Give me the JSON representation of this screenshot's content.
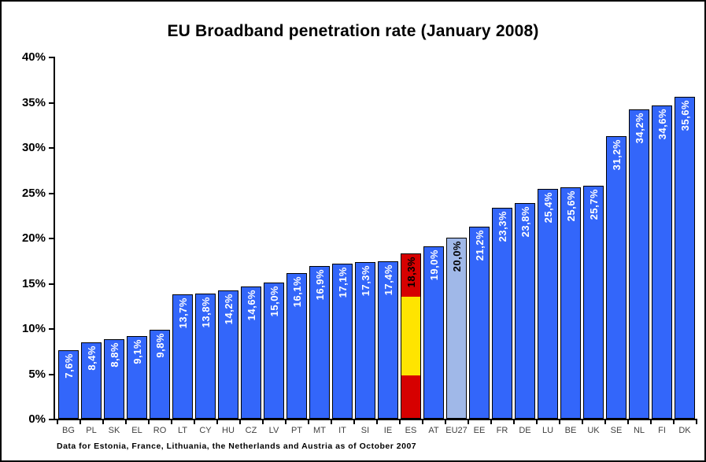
{
  "footnote": "Data for Estonia, France, Lithuania, the Netherlands and Austria as of October 2007",
  "chart_data": {
    "type": "bar",
    "title": "EU Broadband penetration rate (January 2008)",
    "categories": [
      "BG",
      "PL",
      "SK",
      "EL",
      "RO",
      "LT",
      "CY",
      "HU",
      "CZ",
      "LV",
      "PT",
      "MT",
      "IT",
      "SI",
      "IE",
      "ES",
      "AT",
      "EU27",
      "EE",
      "FR",
      "DE",
      "LU",
      "BE",
      "UK",
      "SE",
      "NL",
      "FI",
      "DK"
    ],
    "values": [
      7.6,
      8.4,
      8.8,
      9.1,
      9.8,
      13.7,
      13.8,
      14.2,
      14.6,
      15.0,
      16.1,
      16.9,
      17.1,
      17.3,
      17.4,
      18.3,
      19.0,
      20.0,
      21.2,
      23.3,
      23.8,
      25.4,
      25.6,
      25.7,
      31.2,
      34.2,
      34.6,
      35.6
    ],
    "labels": [
      "7,6%",
      "8,4%",
      "8,8%",
      "9,1%",
      "9,8%",
      "13,7%",
      "13,8%",
      "14,2%",
      "14,6%",
      "15,0%",
      "16,1%",
      "16,9%",
      "17,1%",
      "17,3%",
      "17,4%",
      "18,3%",
      "19,0%",
      "20,0%",
      "21,2%",
      "23,3%",
      "23,8%",
      "25,4%",
      "25,6%",
      "25,7%",
      "31,2%",
      "34,2%",
      "34,6%",
      "35,6%"
    ],
    "xlabel": "",
    "ylabel": "",
    "ylim": [
      0,
      40
    ],
    "ytick_step": 5,
    "ytick_labels": [
      "0%",
      "5%",
      "10%",
      "15%",
      "20%",
      "25%",
      "30%",
      "35%",
      "40%"
    ],
    "grid": false,
    "legend": false,
    "colors": {
      "bar_default": "#3366FA",
      "bar_eu27": "#A0B8E8",
      "bar_es_red": "#D60000",
      "bar_es_yellow": "#FFE400",
      "bar_border": "#000000",
      "label_default": "#FFFFFF",
      "label_special": "#000000"
    },
    "special_bars": {
      "ES": "spain-flag-stripes",
      "EU27": "light-blue"
    }
  }
}
